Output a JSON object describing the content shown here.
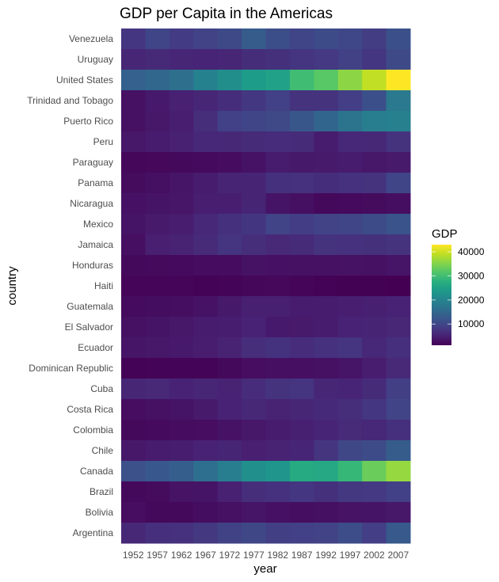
{
  "chart_data": {
    "type": "heatmap",
    "title": "GDP per Capita in the Americas",
    "xlabel": "year",
    "ylabel": "country",
    "legend": {
      "title": "GDP",
      "position": "right",
      "ticks": [
        10000,
        20000,
        30000,
        40000
      ],
      "tick_labels": [
        "10000",
        "20000",
        "30000",
        "40000"
      ],
      "colormap": "viridis"
    },
    "x": [
      "1952",
      "1957",
      "1962",
      "1967",
      "1972",
      "1977",
      "1982",
      "1987",
      "1992",
      "1997",
      "2002",
      "2007"
    ],
    "y": [
      "Venezuela",
      "Uruguay",
      "United States",
      "Trinidad and Tobago",
      "Puerto Rico",
      "Peru",
      "Paraguay",
      "Panama",
      "Nicaragua",
      "Mexico",
      "Jamaica",
      "Honduras",
      "Haiti",
      "Guatemala",
      "El Salvador",
      "Ecuador",
      "Dominican Republic",
      "Cuba",
      "Costa Rica",
      "Colombia",
      "Chile",
      "Canada",
      "Brazil",
      "Bolivia",
      "Argentina"
    ],
    "values": [
      [
        7690,
        9802,
        8423,
        9541,
        10506,
        13144,
        11153,
        9884,
        10734,
        10165,
        8605,
        11416
      ],
      [
        5717,
        6151,
        5603,
        5445,
        5704,
        6504,
        6920,
        7452,
        8137,
        9231,
        7727,
        10611
      ],
      [
        13990,
        14847,
        16173,
        19530,
        21806,
        24073,
        25010,
        29884,
        32004,
        35767,
        39097,
        42952
      ],
      [
        3023,
        4100,
        4997,
        5621,
        6620,
        7899,
        9119,
        7389,
        7370,
        8793,
        11461,
        18009
      ],
      [
        3081,
        3908,
        4598,
        6757,
        9123,
        9771,
        10331,
        12281,
        14642,
        16999,
        18856,
        19329
      ],
      [
        3759,
        4245,
        4957,
        5788,
        5938,
        6281,
        6435,
        6361,
        4446,
        5838,
        5909,
        7409
      ],
      [
        1952,
        2046,
        2149,
        2299,
        2523,
        3249,
        4259,
        3998,
        4197,
        4247,
        3784,
        4173
      ],
      [
        2480,
        2961,
        3536,
        4421,
        5365,
        5352,
        7009,
        7034,
        6619,
        7114,
        7357,
        9809
      ],
      [
        3112,
        3457,
        3635,
        4644,
        4689,
        5487,
        3471,
        2956,
        2171,
        2254,
        2474,
        2749
      ],
      [
        3478,
        4132,
        4582,
        5755,
        7011,
        7675,
        9611,
        8688,
        9472,
        9767,
        10742,
        11978
      ],
      [
        2899,
        4757,
        5246,
        6125,
        7434,
        6650,
        6068,
        6351,
        7405,
        7122,
        6994,
        7321
      ],
      [
        2195,
        2220,
        2292,
        2539,
        2530,
        3203,
        3121,
        3024,
        3082,
        3160,
        3099,
        3548
      ],
      [
        1840,
        1727,
        1797,
        1452,
        1654,
        1875,
        2011,
        1823,
        1456,
        1342,
        1270,
        1202
      ],
      [
        2428,
        2617,
        2750,
        3243,
        4031,
        4880,
        4821,
        4247,
        4440,
        4684,
        4858,
        5186
      ],
      [
        3048,
        3421,
        3777,
        4359,
        4520,
        5139,
        4098,
        4141,
        4444,
        5154,
        5352,
        5728
      ],
      [
        3522,
        3781,
        4086,
        4579,
        5281,
        6680,
        7213,
        6481,
        7104,
        7430,
        5773,
        6873
      ],
      [
        1398,
        1545,
        1663,
        1654,
        2190,
        2681,
        2862,
        2900,
        3045,
        3614,
        4564,
        6025
      ],
      [
        5587,
        6092,
        5181,
        5690,
        5305,
        6380,
        7317,
        7532,
        5593,
        5432,
        6341,
        8948
      ],
      [
        2628,
        2990,
        3461,
        4162,
        5118,
        5927,
        5262,
        5630,
        6160,
        6677,
        7723,
        9645
      ],
      [
        2144,
        2324,
        2492,
        2679,
        3265,
        3816,
        4398,
        4903,
        5445,
        6117,
        5755,
        7007
      ],
      [
        3940,
        4316,
        4519,
        5107,
        5494,
        4757,
        5096,
        5547,
        7596,
        10118,
        10779,
        13172
      ],
      [
        11367,
        12490,
        13462,
        16077,
        18971,
        22091,
        22899,
        26627,
        26343,
        28955,
        33329,
        36319
      ],
      [
        2109,
        2487,
        3337,
        3430,
        4986,
        6660,
        7031,
        7807,
        6950,
        7958,
        8131,
        9066
      ],
      [
        2677,
        2128,
        2181,
        2587,
        2980,
        3548,
        3157,
        2754,
        2962,
        3326,
        3413,
        3822
      ],
      [
        5911,
        6857,
        7133,
        8053,
        9443,
        10079,
        8998,
        9140,
        9308,
        10967,
        8798,
        12779
      ]
    ]
  }
}
